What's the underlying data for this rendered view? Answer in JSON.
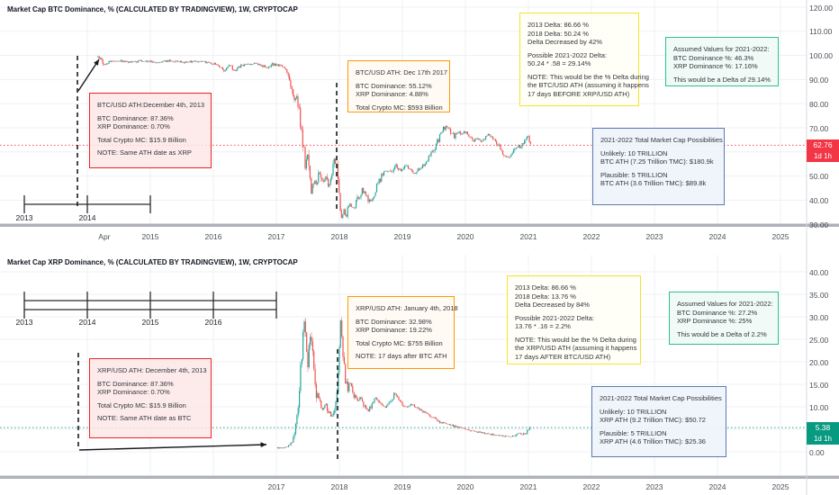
{
  "colors": {
    "up_candle": "#26a69a",
    "down_candle": "#ef5350",
    "last_price_up": "#089981",
    "last_price_down": "#f23645",
    "grid": "#eef0f4",
    "separator": "#aeb1ba",
    "annotation_red": "#ef2424",
    "annotation_orange": "#ff9800",
    "annotation_yellow": "#f2e42c",
    "annotation_green": "#2fbf8f",
    "annotation_blue": "#5d7ab0",
    "drawing_black": "#16181d"
  },
  "chart_data": [
    {
      "type": "candlestick",
      "symbol_title": "Market Cap BTC Dominance, % (CALCULATED BY TRADINGVIEW), 1W, CRYPTOCAP",
      "interval": "1W",
      "ylabel": "BTC Dominance %",
      "ylim": [
        30,
        120
      ],
      "grid": true,
      "y_axis": {
        "ticks": [
          {
            "v": 120,
            "label": "120.00"
          },
          {
            "v": 110,
            "label": "110.00"
          },
          {
            "v": 100,
            "label": "100.00"
          },
          {
            "v": 90,
            "label": "90.00"
          },
          {
            "v": 80,
            "label": "80.00"
          },
          {
            "v": 70,
            "label": "70.00"
          },
          {
            "v": 50,
            "label": "50.00"
          },
          {
            "v": 40,
            "label": "40.00"
          },
          {
            "v": 30,
            "label": "30.00"
          }
        ]
      },
      "x_axis": {
        "ticks": [
          {
            "t": 2014.27,
            "label": "Apr"
          },
          {
            "t": 2015,
            "label": "2015"
          },
          {
            "t": 2016,
            "label": "2016"
          },
          {
            "t": 2017,
            "label": "2017"
          },
          {
            "t": 2018,
            "label": "2018"
          },
          {
            "t": 2019,
            "label": "2019"
          },
          {
            "t": 2020,
            "label": "2020"
          },
          {
            "t": 2021,
            "label": "2021"
          },
          {
            "t": 2022,
            "label": "2022"
          },
          {
            "t": 2023,
            "label": "2023"
          },
          {
            "t": 2024,
            "label": "2024"
          },
          {
            "t": 2025,
            "label": "2025"
          }
        ]
      },
      "last_price": {
        "value": "62.76",
        "countdown": "1d 1h",
        "direction": "down",
        "color": "#f23645"
      },
      "series_pct": [
        [
          2014.15,
          99.3
        ],
        [
          2014.22,
          98.6
        ],
        [
          2014.27,
          95.8
        ],
        [
          2014.35,
          97.6
        ],
        [
          2014.5,
          97.8
        ],
        [
          2014.7,
          97.2
        ],
        [
          2014.9,
          97.8
        ],
        [
          2015.1,
          97.3
        ],
        [
          2015.3,
          97.8
        ],
        [
          2015.5,
          97.2
        ],
        [
          2015.7,
          97.7
        ],
        [
          2015.9,
          97.1
        ],
        [
          2016.05,
          96.3
        ],
        [
          2016.18,
          93.8
        ],
        [
          2016.26,
          95.8
        ],
        [
          2016.33,
          93.6
        ],
        [
          2016.45,
          95.9
        ],
        [
          2016.6,
          96.6
        ],
        [
          2016.75,
          96.2
        ],
        [
          2016.85,
          94.3
        ],
        [
          2016.95,
          96.3
        ],
        [
          2017.05,
          95.9
        ],
        [
          2017.15,
          94.4
        ],
        [
          2017.22,
          89.5
        ],
        [
          2017.28,
          81
        ],
        [
          2017.33,
          84
        ],
        [
          2017.38,
          71
        ],
        [
          2017.43,
          61
        ],
        [
          2017.46,
          55
        ],
        [
          2017.49,
          60
        ],
        [
          2017.53,
          49.5
        ],
        [
          2017.56,
          44.5
        ],
        [
          2017.6,
          49
        ],
        [
          2017.64,
          46
        ],
        [
          2017.68,
          52
        ],
        [
          2017.72,
          47
        ],
        [
          2017.78,
          50
        ],
        [
          2017.83,
          45
        ],
        [
          2017.88,
          52
        ],
        [
          2017.92,
          56.5
        ],
        [
          2017.96,
          55.1
        ],
        [
          2018.0,
          43
        ],
        [
          2018.02,
          33
        ],
        [
          2018.07,
          35.5
        ],
        [
          2018.11,
          33.5
        ],
        [
          2018.16,
          38
        ],
        [
          2018.22,
          36
        ],
        [
          2018.3,
          41
        ],
        [
          2018.36,
          44
        ],
        [
          2018.42,
          42.5
        ],
        [
          2018.48,
          39
        ],
        [
          2018.54,
          41.5
        ],
        [
          2018.6,
          46
        ],
        [
          2018.68,
          50.5
        ],
        [
          2018.75,
          53
        ],
        [
          2018.82,
          51
        ],
        [
          2018.9,
          54.5
        ],
        [
          2018.98,
          52
        ],
        [
          2019.05,
          54.5
        ],
        [
          2019.12,
          52.5
        ],
        [
          2019.2,
          51
        ],
        [
          2019.28,
          53.5
        ],
        [
          2019.35,
          55
        ],
        [
          2019.42,
          57.5
        ],
        [
          2019.5,
          61
        ],
        [
          2019.57,
          65
        ],
        [
          2019.64,
          69
        ],
        [
          2019.7,
          70.8
        ],
        [
          2019.76,
          68.5
        ],
        [
          2019.82,
          66.2
        ],
        [
          2019.88,
          68.3
        ],
        [
          2019.94,
          67
        ],
        [
          2020.0,
          68.3
        ],
        [
          2020.06,
          66.5
        ],
        [
          2020.12,
          64.3
        ],
        [
          2020.18,
          65.8
        ],
        [
          2020.24,
          64.2
        ],
        [
          2020.3,
          65.3
        ],
        [
          2020.36,
          67
        ],
        [
          2020.42,
          66
        ],
        [
          2020.48,
          64.5
        ],
        [
          2020.54,
          62
        ],
        [
          2020.6,
          59.5
        ],
        [
          2020.66,
          57.7
        ],
        [
          2020.72,
          58.8
        ],
        [
          2020.78,
          61
        ],
        [
          2020.84,
          62.5
        ],
        [
          2020.88,
          61.2
        ],
        [
          2020.92,
          63.5
        ],
        [
          2020.96,
          66.3
        ],
        [
          2021.0,
          67.3
        ],
        [
          2021.04,
          62.76
        ]
      ],
      "annotations": {
        "ruler": {
          "span_years": [
            2013,
            2015
          ],
          "labels": [
            {
              "t": 2013,
              "text": "2013"
            },
            {
              "t": 2014,
              "text": "2014"
            }
          ]
        },
        "red_box": [
          "BTC/USD ATH:December 4th, 2013",
          "",
          "BTC Dominance: 87.36%",
          "XRP Dominance: 0.70%",
          "",
          "Total Crypto MC: $15.9 Billion",
          "",
          "NOTE: Same ATH date as XRP"
        ],
        "orange_box": [
          "BTC/USD ATH: Dec 17th 2017",
          "",
          "BTC Dominance: 55.12%",
          "XRP Dominance: 4.88%",
          "",
          "Total Crypto MC: $593 Billion"
        ],
        "yellow_box": [
          "2013 Delta: 86.66 %",
          "2018 Delta: 50.24 %",
          "Delta Decreased by 42%",
          "",
          "Possible 2021-2022 Delta:",
          "50.24 * .58 = 29.14%",
          "",
          "NOTE: This would be the % Delta during",
          "the BTC/USD ATH (assuming it happens",
          "17 days BEFORE XRP/USD ATH)"
        ],
        "green_box": [
          "Assumed Values for 2021-2022:",
          "BTC Dominance %: 46.3%",
          "XRP Dominance %: 17.16%",
          "",
          "This would be a Delta of 29.14%"
        ],
        "blue_box": [
          "2021-2022 Total Market Cap Possibilities",
          "",
          "Unlikely: 10 TRILLION",
          "BTC ATH (7.25 Trillion TMC): $180.9k",
          "",
          "Plausible: 5 TRILLION",
          "BTC ATH (3.6 Trillion TMC): $89.8k"
        ]
      }
    },
    {
      "type": "candlestick",
      "symbol_title": "Market Cap XRP Dominance, % (CALCULATED BY TRADINGVIEW), 1W, CRYPTOCAP",
      "interval": "1W",
      "ylabel": "XRP Dominance %",
      "ylim": [
        0,
        40
      ],
      "grid": true,
      "y_axis": {
        "ticks": [
          {
            "v": 40,
            "label": "40.00"
          },
          {
            "v": 35,
            "label": "35.00"
          },
          {
            "v": 30,
            "label": "30.00"
          },
          {
            "v": 25,
            "label": "25.00"
          },
          {
            "v": 20,
            "label": "20.00"
          },
          {
            "v": 15,
            "label": "15.00"
          },
          {
            "v": 10,
            "label": "10.00"
          },
          {
            "v": 0,
            "label": "0.00"
          }
        ]
      },
      "x_axis": {
        "ticks": [
          {
            "t": 2017,
            "label": "2017"
          },
          {
            "t": 2018,
            "label": "2018"
          },
          {
            "t": 2019,
            "label": "2019"
          },
          {
            "t": 2020,
            "label": "2020"
          },
          {
            "t": 2021,
            "label": "2021"
          },
          {
            "t": 2022,
            "label": "2022"
          },
          {
            "t": 2023,
            "label": "2023"
          },
          {
            "t": 2024,
            "label": "2024"
          },
          {
            "t": 2025,
            "label": "2025"
          }
        ]
      },
      "last_price": {
        "value": "5.38",
        "countdown": "1d 1h",
        "direction": "up",
        "color": "#089981"
      },
      "series_pct": [
        [
          2017.0,
          0.8
        ],
        [
          2017.1,
          0.9
        ],
        [
          2017.18,
          1.2
        ],
        [
          2017.25,
          2.2
        ],
        [
          2017.3,
          5.5
        ],
        [
          2017.35,
          11
        ],
        [
          2017.4,
          21
        ],
        [
          2017.44,
          30
        ],
        [
          2017.47,
          24
        ],
        [
          2017.5,
          20
        ],
        [
          2017.54,
          26
        ],
        [
          2017.58,
          21
        ],
        [
          2017.62,
          14
        ],
        [
          2017.68,
          11
        ],
        [
          2017.73,
          9.5
        ],
        [
          2017.78,
          11
        ],
        [
          2017.83,
          8.8
        ],
        [
          2017.88,
          8
        ],
        [
          2017.93,
          10
        ],
        [
          2017.97,
          16
        ],
        [
          2018.0,
          24
        ],
        [
          2018.02,
          31
        ],
        [
          2018.05,
          22
        ],
        [
          2018.09,
          17
        ],
        [
          2018.13,
          14
        ],
        [
          2018.18,
          15.5
        ],
        [
          2018.23,
          12.8
        ],
        [
          2018.28,
          11.2
        ],
        [
          2018.34,
          12
        ],
        [
          2018.4,
          10.2
        ],
        [
          2018.46,
          9.2
        ],
        [
          2018.52,
          10.8
        ],
        [
          2018.58,
          12.2
        ],
        [
          2018.64,
          10.8
        ],
        [
          2018.7,
          9.8
        ],
        [
          2018.76,
          10.3
        ],
        [
          2018.82,
          11.5
        ],
        [
          2018.88,
          13
        ],
        [
          2018.94,
          11.8
        ],
        [
          2019.0,
          10.5
        ],
        [
          2019.08,
          9.8
        ],
        [
          2019.16,
          10.6
        ],
        [
          2019.24,
          9.6
        ],
        [
          2019.32,
          9
        ],
        [
          2019.4,
          8.4
        ],
        [
          2019.5,
          7.4
        ],
        [
          2019.6,
          6.6
        ],
        [
          2019.7,
          6.1
        ],
        [
          2019.8,
          5.8
        ],
        [
          2019.9,
          5.4
        ],
        [
          2020.0,
          5.1
        ],
        [
          2020.1,
          4.7
        ],
        [
          2020.2,
          4.4
        ],
        [
          2020.3,
          4.1
        ],
        [
          2020.4,
          3.9
        ],
        [
          2020.5,
          3.7
        ],
        [
          2020.6,
          3.5
        ],
        [
          2020.7,
          3.4
        ],
        [
          2020.78,
          3.6
        ],
        [
          2020.84,
          4.3
        ],
        [
          2020.9,
          3.9
        ],
        [
          2020.96,
          4.1
        ],
        [
          2021.04,
          5.38
        ]
      ],
      "annotations": {
        "ruler": {
          "span_years": [
            2013,
            2017
          ],
          "labels": [
            {
              "t": 2013,
              "text": "2013"
            },
            {
              "t": 2014,
              "text": "2014"
            },
            {
              "t": 2015,
              "text": "2015"
            },
            {
              "t": 2016,
              "text": "2016"
            }
          ]
        },
        "red_box": [
          "XRP/USD ATH: December 4th, 2013",
          "",
          "BTC Dominance: 87.36%",
          "XRP Dominance: 0.70%",
          "",
          "Total Crypto MC: $15.9 Billion",
          "",
          "NOTE: Same ATH date as BTC"
        ],
        "orange_box": [
          "XRP/USD ATH: January 4th, 2018",
          "",
          "BTC Dominance: 32.98%",
          "XRP Dominance: 19.22%",
          "",
          "Total Crypto MC: $755 Billion",
          "",
          "NOTE: 17 days after BTC ATH"
        ],
        "yellow_box": [
          "2013 Delta: 86.66 %",
          "2018 Delta: 13.76 %",
          "Delta Decreased by 84%",
          "",
          "Possible 2021-2022 Delta:",
          "13.76 * .16 = 2.2%",
          "",
          "NOTE: This would be the % Delta during",
          "the XRP/USD ATH (assuming it happens",
          "17 days AFTER BTC/USD ATH)"
        ],
        "green_box": [
          "Assumed Values for 2021-2022:",
          "BTC Dominance %: 27.2%",
          "XRP Dominance %: 25%",
          "",
          "This would be a Delta of 2.2%"
        ],
        "blue_box": [
          "2021-2022 Total Market Cap Possibilities",
          "",
          "Unlikely: 10 TRILLION",
          "XRP ATH (9.2 Trillion TMC): $50.72",
          "",
          "Plausible: 5 TRILLION",
          "XRP ATH (4.6 Trillion TMC): $25.36"
        ]
      }
    }
  ]
}
